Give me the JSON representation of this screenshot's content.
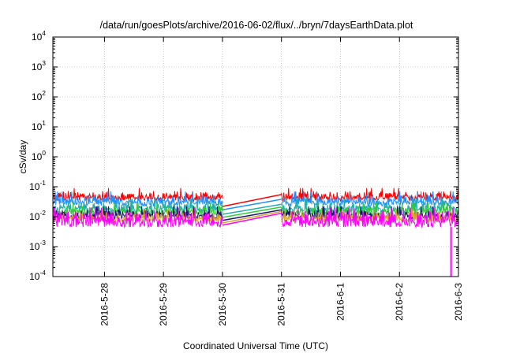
{
  "chart_data": {
    "type": "line",
    "title": "/data/run/goesPlots/archive/2016-06-02/flux/../bryn/7daysEarthData.plot",
    "xlabel": "Coordinated Universal Time (UTC)",
    "ylabel": "cSv/day",
    "x_scale": "time",
    "x_range": [
      "2016-05-27T03:00",
      "2016-06-03T00:00"
    ],
    "x_tick_labels": [
      "2016-5-28",
      "2016-5-29",
      "2016-5-30",
      "2016-5-31",
      "2016-6-1",
      "2016-6-2",
      "2016-6-3"
    ],
    "y_scale": "log",
    "ylim": [
      0.0001,
      10000
    ],
    "y_ticks": [
      {
        "value": 0.0001,
        "base": "10",
        "exp": "-4"
      },
      {
        "value": 0.001,
        "base": "10",
        "exp": "-3"
      },
      {
        "value": 0.01,
        "base": "10",
        "exp": "-2"
      },
      {
        "value": 0.1,
        "base": "10",
        "exp": "-1"
      },
      {
        "value": 1,
        "base": "10",
        "exp": "0"
      },
      {
        "value": 10,
        "base": "10",
        "exp": "1"
      },
      {
        "value": 100,
        "base": "10",
        "exp": "2"
      },
      {
        "value": 1000,
        "base": "10",
        "exp": "3"
      },
      {
        "value": 10000,
        "base": "10",
        "exp": "4"
      }
    ],
    "grid": true,
    "data_gap": {
      "start": "2016-05-30T00:00",
      "end": "2016-05-31T00:00"
    },
    "series": [
      {
        "color": "#ff0000",
        "typical": 0.05,
        "low": 0.035,
        "high": 0.09,
        "at_gap_start": 0.022,
        "at_gap_end": 0.055
      },
      {
        "color": "#1e90ff",
        "typical": 0.035,
        "low": 0.025,
        "high": 0.07,
        "at_gap_start": 0.017,
        "at_gap_end": 0.038
      },
      {
        "color": "#20b2aa",
        "typical": 0.02,
        "low": 0.015,
        "high": 0.04,
        "at_gap_start": 0.012,
        "at_gap_end": 0.026
      },
      {
        "color": "#32cd32",
        "typical": 0.016,
        "low": 0.012,
        "high": 0.03,
        "at_gap_start": 0.0095,
        "at_gap_end": 0.021
      },
      {
        "color": "#191970",
        "typical": 0.012,
        "low": 0.009,
        "high": 0.022,
        "at_gap_start": 0.0075,
        "at_gap_end": 0.017
      },
      {
        "color": "#daa520",
        "typical": 0.01,
        "low": 0.007,
        "high": 0.018,
        "at_gap_start": 0.0062,
        "at_gap_end": 0.015
      },
      {
        "color": "#ff00ff",
        "typical": 0.009,
        "low": 0.0045,
        "high": 0.02,
        "at_gap_start": 0.0052,
        "at_gap_end": 0.013,
        "dropout": {
          "at": "2016-06-02T21:00",
          "value": 0.0001
        }
      }
    ]
  }
}
